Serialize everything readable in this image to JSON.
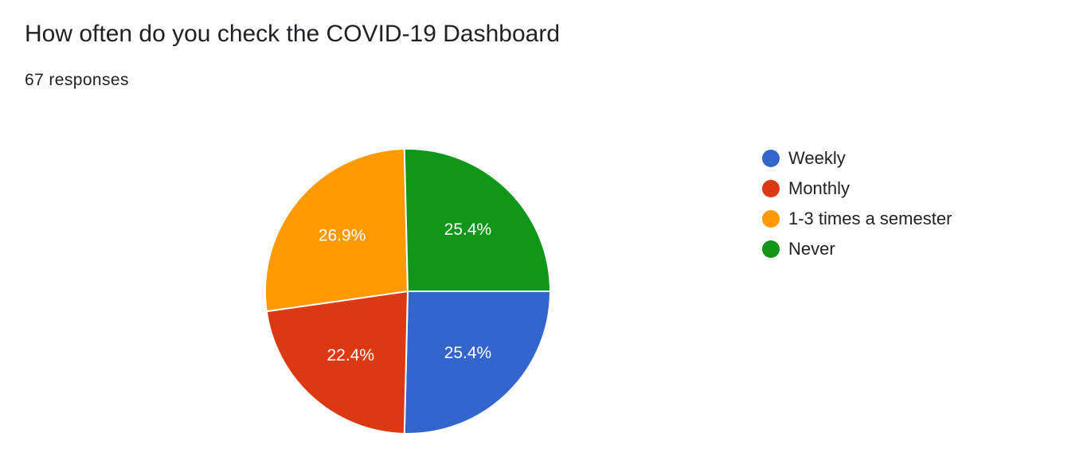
{
  "question": {
    "title": "How often do you check the COVID-19 Dashboard",
    "responses": "67 responses"
  },
  "chart_data": {
    "type": "pie",
    "categories": [
      "Weekly",
      "Monthly",
      "1-3 times a semester",
      "Never"
    ],
    "values": [
      25.4,
      22.4,
      26.9,
      25.4
    ],
    "labels": [
      "25.4%",
      "22.4%",
      "26.9%",
      "25.4%"
    ],
    "colors": [
      "#3366cc",
      "#dc3912",
      "#ff9900",
      "#109618"
    ],
    "legend_position": "right",
    "title": "",
    "start": "top",
    "direction": "clockwise"
  }
}
